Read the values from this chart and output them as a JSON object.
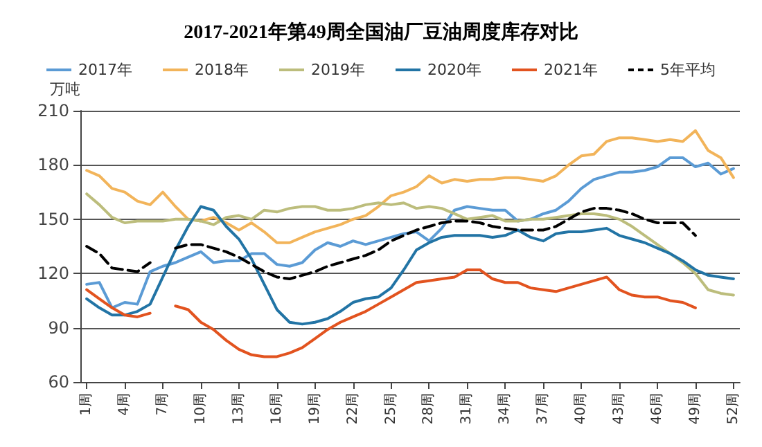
{
  "chart_data": {
    "type": "line",
    "title": "2017-2021年第49周全国油厂豆油周度库存对比",
    "ylabel": "万吨",
    "categories": [
      "1周",
      null,
      null,
      "4周",
      null,
      null,
      "7周",
      null,
      null,
      "10周",
      null,
      null,
      "13周",
      null,
      null,
      "16周",
      null,
      null,
      "19周",
      null,
      null,
      "22周",
      null,
      null,
      "25周",
      null,
      null,
      "28周",
      null,
      null,
      "31周",
      null,
      null,
      "34周",
      null,
      null,
      "37周",
      null,
      null,
      "40周",
      null,
      null,
      "43周",
      null,
      null,
      "46周",
      null,
      null,
      "49周",
      null,
      null,
      "52周"
    ],
    "series": [
      {
        "name": "2017年",
        "color": "#5b9bd5",
        "values": [
          114,
          115,
          101,
          104,
          103,
          121,
          124,
          126,
          129,
          132,
          126,
          127,
          127,
          131,
          131,
          125,
          124,
          126,
          133,
          137,
          135,
          138,
          136,
          138,
          140,
          142,
          143,
          138,
          145,
          155,
          157,
          156,
          155,
          155,
          149,
          150,
          153,
          155,
          160,
          167,
          172,
          174,
          176,
          176,
          177,
          179,
          184,
          184,
          179,
          181,
          175,
          178
        ]
      },
      {
        "name": "2018年",
        "color": "#f2b45a",
        "values": [
          177,
          174,
          167,
          165,
          160,
          158,
          165,
          157,
          150,
          149,
          151,
          148,
          144,
          148,
          143,
          137,
          137,
          140,
          143,
          145,
          147,
          150,
          152,
          157,
          163,
          165,
          168,
          174,
          170,
          172,
          171,
          172,
          172,
          173,
          173,
          172,
          171,
          174,
          180,
          185,
          186,
          193,
          195,
          195,
          194,
          193,
          194,
          193,
          199,
          188,
          184,
          173
        ]
      },
      {
        "name": "2019年",
        "color": "#bcbd7c",
        "values": [
          164,
          158,
          151,
          148,
          149,
          149,
          149,
          150,
          150,
          149,
          147,
          151,
          152,
          150,
          155,
          154,
          156,
          157,
          157,
          155,
          155,
          156,
          158,
          159,
          158,
          159,
          156,
          157,
          156,
          153,
          150,
          151,
          152,
          149,
          149,
          150,
          150,
          151,
          152,
          153,
          153,
          152,
          150,
          146,
          141,
          136,
          131,
          126,
          120,
          111,
          109,
          108
        ]
      },
      {
        "name": "2020年",
        "color": "#2274a5",
        "values": [
          106,
          101,
          97,
          97,
          99,
          103,
          118,
          133,
          146,
          157,
          155,
          146,
          139,
          128,
          114,
          100,
          93,
          92,
          93,
          95,
          99,
          104,
          106,
          107,
          112,
          122,
          133,
          137,
          140,
          141,
          141,
          141,
          140,
          141,
          144,
          140,
          138,
          142,
          143,
          143,
          144,
          145,
          141,
          139,
          137,
          134,
          131,
          127,
          122,
          119,
          118,
          117
        ]
      },
      {
        "name": "2021年",
        "color": "#e2531f",
        "values": [
          111,
          106,
          101,
          97,
          96,
          98,
          null,
          102,
          100,
          93,
          89,
          83,
          78,
          75,
          74,
          74,
          76,
          79,
          84,
          89,
          93,
          96,
          99,
          103,
          107,
          111,
          115,
          116,
          117,
          118,
          122,
          122,
          117,
          115,
          115,
          112,
          111,
          110,
          112,
          114,
          116,
          118,
          111,
          108,
          107,
          107,
          105,
          104,
          101,
          null,
          null,
          null
        ]
      },
      {
        "name": "5年平均",
        "color": "#000000",
        "line_style": "dashed",
        "values": [
          135,
          131,
          123,
          122,
          121,
          126,
          null,
          134,
          136,
          136,
          134,
          132,
          129,
          125,
          121,
          118,
          117,
          119,
          121,
          124,
          126,
          128,
          130,
          133,
          138,
          141,
          144,
          146,
          148,
          149,
          149,
          148,
          146,
          145,
          144,
          144,
          144,
          146,
          150,
          154,
          156,
          156,
          155,
          153,
          150,
          148,
          148,
          148,
          141,
          null,
          null,
          null
        ]
      }
    ],
    "ylim": [
      60,
      210
    ],
    "yticks": [
      60,
      90,
      120,
      150,
      180,
      210
    ],
    "grid": "y",
    "legend": "top",
    "marker": "none"
  }
}
